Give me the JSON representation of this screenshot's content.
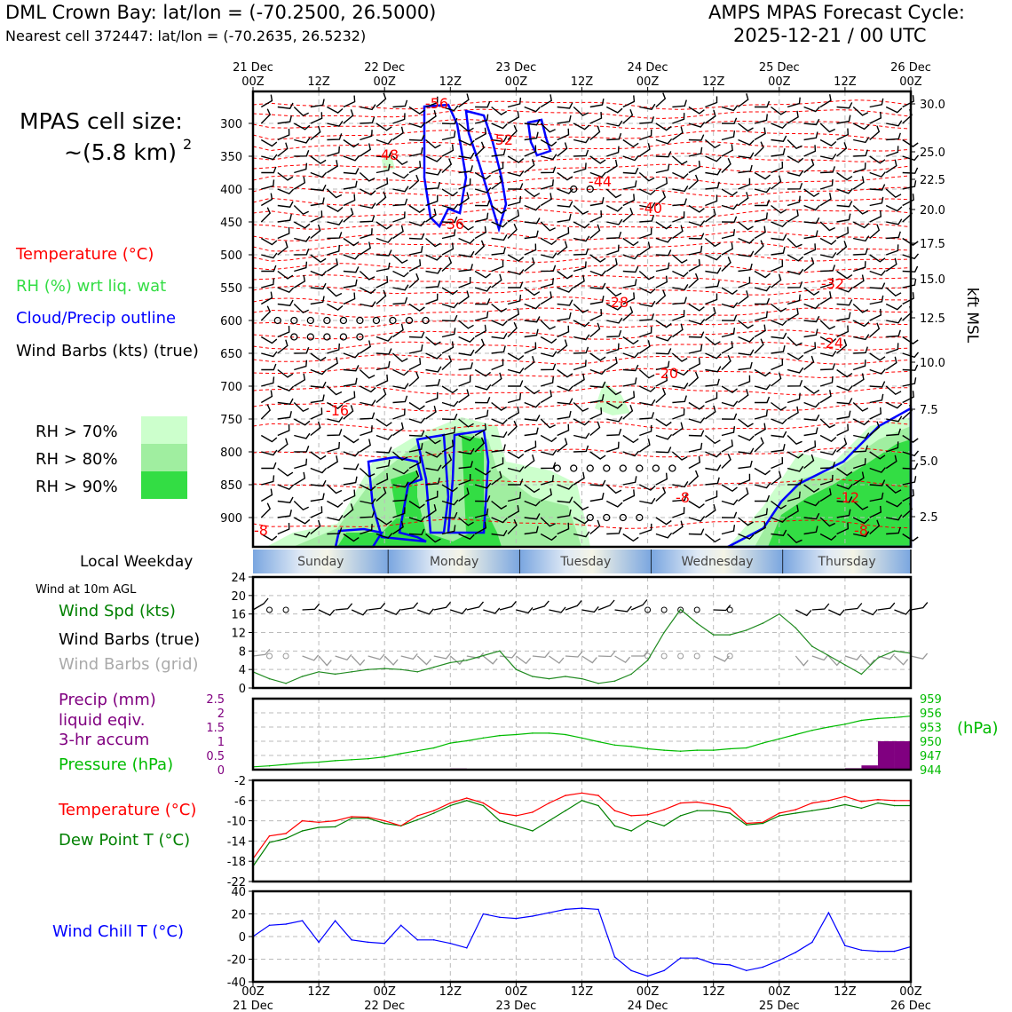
{
  "header": {
    "station_line": "DML Crown Bay: lat/lon = (-70.2500, 26.5000)",
    "cell_line": "Nearest cell 372447: lat/lon = (-70.2635, 26.5232)",
    "cycle_line1": "AMPS MPAS Forecast Cycle:",
    "cycle_line2": "2025-12-21 / 00 UTC"
  },
  "colors": {
    "temperature": "#ff0000",
    "rh_green": "#00aa00",
    "cloud": "#0000ff",
    "wind": "#000000",
    "grid_wind": "#aaaaaa",
    "precip": "#800080",
    "pressure": "#00bb00",
    "dewpoint": "#008000",
    "windchill": "#0000ff",
    "rh70": "#ccffcc",
    "rh80": "#a0eea0",
    "rh90": "#33dd44"
  },
  "time_axis": {
    "top_dates": [
      "21 Dec",
      "22 Dec",
      "23 Dec",
      "24 Dec",
      "25 Dec",
      "26 Dec"
    ],
    "top_hours": [
      "00Z",
      "12Z",
      "00Z",
      "12Z",
      "00Z",
      "12Z",
      "00Z",
      "12Z",
      "00Z",
      "12Z",
      "00Z"
    ],
    "bottom_hours": [
      "00Z",
      "12Z",
      "00Z",
      "12Z",
      "00Z",
      "12Z",
      "00Z",
      "12Z",
      "00Z",
      "12Z",
      "00Z"
    ],
    "bottom_dates": [
      "21 Dec",
      "22 Dec",
      "23 Dec",
      "24 Dec",
      "25 Dec",
      "26 Dec"
    ],
    "range_hours": [
      0,
      120
    ]
  },
  "weekdays": {
    "title": "Local Weekday",
    "days": [
      "Sunday",
      "Monday",
      "Tuesday",
      "Wednesday",
      "Thursday"
    ]
  },
  "cross_section": {
    "cell_size_label": "MPAS cell size:",
    "cell_size_value": "~(5.8 km)",
    "cell_size_exp": "2",
    "legend": [
      {
        "text": "Temperature (°C)",
        "color": "#ff0000"
      },
      {
        "text": "RH (%) wrt liq. wat",
        "color": "#33dd44"
      },
      {
        "text": "Cloud/Precip outline",
        "color": "#0000ff"
      },
      {
        "text": "Wind Barbs (kts) (true)",
        "color": "#000000"
      }
    ],
    "rh_legend": [
      "RH > 70%",
      "RH > 80%",
      "RH > 90%"
    ],
    "pressure_ticks": [
      "300",
      "350",
      "400",
      "450",
      "500",
      "550",
      "600",
      "650",
      "700",
      "750",
      "800",
      "850",
      "900"
    ],
    "kft_ticks": [
      "30.0",
      "25.0",
      "22.5",
      "20.0",
      "17.5",
      "15.0",
      "12.5",
      "10.0",
      "7.5",
      "5.0",
      "2.5"
    ],
    "kft_label": "kft MSL",
    "temp_labels": [
      "-56",
      "-52",
      "-48",
      "-44",
      "-40",
      "-36",
      "-32",
      "-28",
      "-24",
      "-20",
      "-16",
      "-12",
      "-8",
      "-8",
      "-8"
    ]
  },
  "chart_data": [
    {
      "type": "line",
      "title": "Wind at 10m AGL",
      "x": [
        0,
        3,
        6,
        9,
        12,
        15,
        18,
        21,
        24,
        27,
        30,
        33,
        36,
        39,
        42,
        45,
        48,
        51,
        54,
        57,
        60,
        63,
        66,
        69,
        72,
        75,
        78,
        81,
        84,
        87,
        90,
        93,
        96,
        99,
        102,
        105,
        108,
        111,
        114,
        117,
        120
      ],
      "series": [
        {
          "name": "Wind Spd (kts)",
          "values": [
            3.5,
            2.0,
            1.0,
            2.5,
            3.5,
            3.0,
            3.5,
            4.0,
            4.2,
            4.0,
            3.5,
            4.5,
            5.5,
            6.0,
            7.0,
            8.0,
            4.0,
            2.5,
            2.0,
            2.5,
            2.0,
            1.0,
            1.5,
            3.0,
            6.0,
            12.0,
            17.0,
            14.0,
            11.5,
            11.5,
            12.5,
            14.0,
            16.0,
            13.0,
            9.0,
            7.0,
            5.0,
            3.0,
            6.5,
            8.0,
            7.5
          ]
        }
      ],
      "legend": [
        "Wind Spd (kts)",
        "Wind Barbs (true)",
        "Wind Barbs (grid)"
      ],
      "yticks": [
        0,
        4,
        8,
        12,
        16,
        20,
        24
      ],
      "ylim": [
        0,
        24
      ]
    },
    {
      "type": "bar",
      "title": "",
      "x": [
        0,
        3,
        6,
        9,
        12,
        15,
        18,
        21,
        24,
        27,
        30,
        33,
        36,
        39,
        42,
        45,
        48,
        51,
        54,
        57,
        60,
        63,
        66,
        69,
        72,
        75,
        78,
        81,
        84,
        87,
        90,
        93,
        96,
        99,
        102,
        105,
        108,
        111,
        114,
        117,
        120
      ],
      "series": [
        {
          "name": "Pressure (hPa)",
          "values": [
            944.6,
            944.8,
            945.1,
            945.4,
            945.6,
            945.9,
            946.1,
            946.3,
            946.7,
            947.4,
            948.0,
            948.6,
            949.6,
            950.1,
            950.7,
            951.2,
            951.4,
            951.7,
            951.7,
            951.4,
            950.7,
            949.9,
            949.2,
            948.9,
            948.4,
            948.1,
            947.9,
            948.1,
            948.1,
            948.4,
            948.6,
            949.6,
            950.5,
            951.4,
            952.3,
            953.0,
            953.6,
            954.4,
            954.8,
            955.0,
            955.3
          ]
        },
        {
          "name": "Precip (mm)",
          "values": [
            0,
            0,
            0,
            0,
            0,
            0,
            0,
            0,
            0,
            0,
            0,
            0,
            0,
            0.04,
            0,
            0,
            0,
            0,
            0,
            0,
            0,
            0,
            0,
            0,
            0,
            0,
            0,
            0,
            0,
            0,
            0,
            0,
            0,
            0,
            0,
            0,
            0,
            0.05,
            0.15,
            1.0,
            1.0
          ]
        }
      ],
      "legend": [
        "Precip (mm)",
        "liquid eqiv.",
        "3-hr accum",
        "Pressure (hPa)"
      ],
      "precip_ticks": [
        0,
        0.5,
        1.0,
        1.5,
        2.0,
        2.5
      ],
      "precip_ylim": [
        0,
        2.5
      ],
      "pressure_ticks": [
        944,
        947,
        950,
        953,
        956,
        959
      ],
      "pressure_ylim": [
        944,
        959
      ],
      "pressure_unit": "(hPa)"
    },
    {
      "type": "line",
      "title": "",
      "x": [
        0,
        3,
        6,
        9,
        12,
        15,
        18,
        21,
        24,
        27,
        30,
        33,
        36,
        39,
        42,
        45,
        48,
        51,
        54,
        57,
        60,
        63,
        66,
        69,
        72,
        75,
        78,
        81,
        84,
        87,
        90,
        93,
        96,
        99,
        102,
        105,
        108,
        111,
        114,
        117,
        120
      ],
      "series": [
        {
          "name": "Temperature (°C)",
          "values": [
            -17.5,
            -13.0,
            -12.5,
            -10.0,
            -10.3,
            -10.0,
            -9.2,
            -9.3,
            -10.0,
            -11.0,
            -9.0,
            -8.0,
            -6.5,
            -5.5,
            -6.5,
            -8.5,
            -9.0,
            -8.3,
            -6.5,
            -5.0,
            -4.5,
            -5.0,
            -8.0,
            -9.0,
            -8.8,
            -7.8,
            -6.5,
            -6.3,
            -6.8,
            -7.5,
            -10.5,
            -10.3,
            -8.5,
            -7.8,
            -6.5,
            -6.0,
            -5.2,
            -6.2,
            -5.8,
            -6.0,
            -6.0
          ]
        },
        {
          "name": "Dew Point T (°C)",
          "values": [
            -19.0,
            -14.3,
            -13.5,
            -12.0,
            -11.3,
            -11.2,
            -9.5,
            -9.5,
            -10.5,
            -11.0,
            -9.8,
            -8.5,
            -7.0,
            -6.0,
            -7.0,
            -10.0,
            -11.0,
            -12.0,
            -10.0,
            -8.0,
            -6.0,
            -7.0,
            -11.0,
            -12.0,
            -10.0,
            -11.0,
            -9.0,
            -8.0,
            -8.0,
            -8.5,
            -10.8,
            -10.5,
            -9.0,
            -8.5,
            -8.0,
            -7.5,
            -6.8,
            -7.5,
            -6.5,
            -7.0,
            -7.0
          ]
        }
      ],
      "legend": [
        "Temperature (°C)",
        "Dew Point T (°C)"
      ],
      "yticks": [
        -22,
        -18,
        -14,
        -10,
        -6,
        -2
      ],
      "ylim": [
        -22,
        -2
      ]
    },
    {
      "type": "line",
      "title": "",
      "x": [
        0,
        3,
        6,
        9,
        12,
        15,
        18,
        21,
        24,
        27,
        30,
        33,
        36,
        39,
        42,
        45,
        48,
        51,
        54,
        57,
        60,
        63,
        66,
        69,
        72,
        75,
        78,
        81,
        84,
        87,
        90,
        93,
        96,
        99,
        102,
        105,
        108,
        111,
        114,
        117,
        120
      ],
      "series": [
        {
          "name": "Wind Chill T (°C)",
          "values": [
            0,
            10,
            11,
            14,
            -5,
            14,
            -3,
            -5,
            -6,
            10,
            -3,
            -3,
            -6,
            -10,
            20,
            17,
            16,
            18,
            21,
            24,
            25,
            24,
            -18,
            -30,
            -35,
            -30,
            -19,
            -19,
            -24,
            -25,
            -30,
            -27,
            -21,
            -14,
            -5,
            21,
            -8,
            -12,
            -13,
            -13,
            -9
          ]
        }
      ],
      "legend": [
        "Wind Chill T (°C)"
      ],
      "yticks": [
        -40,
        -20,
        0,
        20,
        40
      ],
      "ylim": [
        -40,
        40
      ]
    }
  ]
}
